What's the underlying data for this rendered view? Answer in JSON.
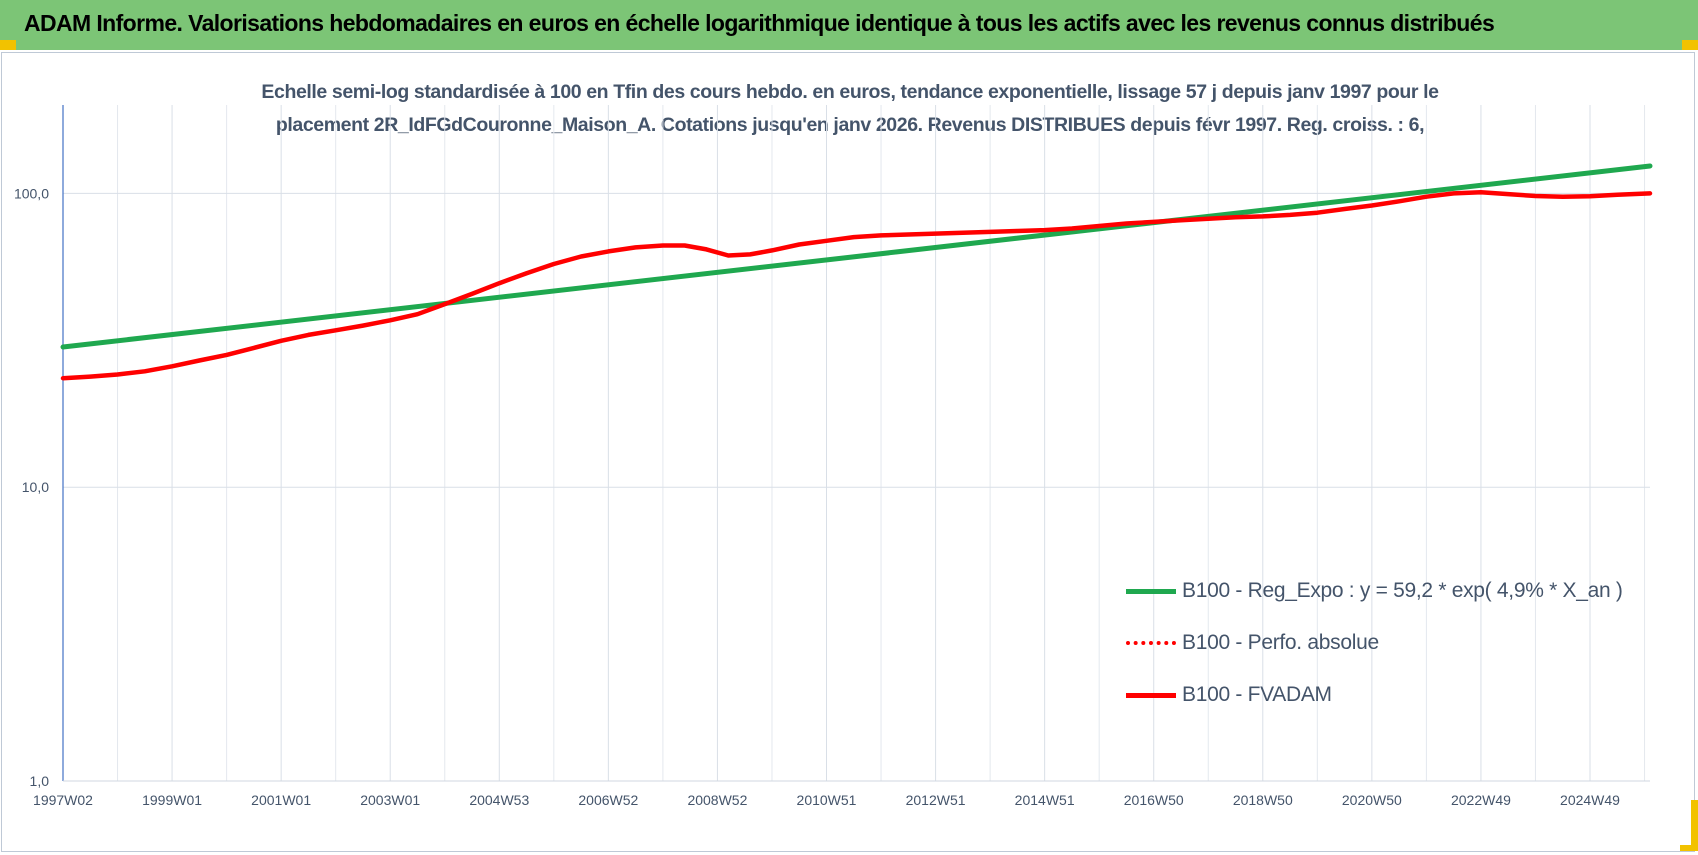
{
  "header": {
    "title": "ADAM Informe. Valorisations hebdomadaires en euros en échelle logarithmique identique à tous les actifs avec les revenus connus distribués"
  },
  "chart_data": {
    "type": "line",
    "title_lines": [
      "Echelle semi-log standardisée à 100 en Tfin des cours hebdo. en euros, tendance exponentielle, lissage 57 j depuis janv 1997 pour le",
      "placement 2R_IdFGdCouronne_Maison_A. Cotations jusqu'en janv 2026. Revenus DISTRIBUES depuis févr 1997. Reg. croiss. : 6,"
    ],
    "y_scale": "log",
    "ylim": [
      1,
      200
    ],
    "y_ticks": [
      "1,0",
      "10,0",
      "100,0"
    ],
    "y_tick_values": [
      1,
      10,
      100
    ],
    "x_range": [
      1997.0,
      2026.1
    ],
    "x_tick_labels": [
      "1997W02",
      "1999W01",
      "2001W01",
      "2003W01",
      "2004W53",
      "2006W52",
      "2008W52",
      "2010W51",
      "2012W51",
      "2014W51",
      "2016W50",
      "2018W50",
      "2020W50",
      "2022W49",
      "2024W49"
    ],
    "x_tick_years": [
      1997.0,
      1999.0,
      2001.0,
      2003.0,
      2005.0,
      2007.0,
      2009.0,
      2011.0,
      2013.0,
      2015.0,
      2017.0,
      2019.0,
      2021.0,
      2023.0,
      2025.0
    ],
    "grid": true,
    "legend_position": "bottom-right",
    "series": [
      {
        "name": "B100 - Reg_Expo : y = 59,2 * exp( 4,9% *  X_an )",
        "color": "#1fa84f",
        "style": "solid",
        "points": [
          [
            1997.0,
            30.0
          ],
          [
            2026.1,
            124.0
          ]
        ]
      },
      {
        "name": "B100 - Perfo. absolue",
        "color": "#ff0000",
        "style": "dotted",
        "points": []
      },
      {
        "name": "B100 - FVADAM",
        "color": "#ff0000",
        "style": "solid",
        "points": [
          [
            1997.0,
            23.5
          ],
          [
            1997.5,
            23.8
          ],
          [
            1998.0,
            24.2
          ],
          [
            1998.5,
            24.8
          ],
          [
            1999.0,
            25.8
          ],
          [
            1999.5,
            27.0
          ],
          [
            2000.0,
            28.2
          ],
          [
            2000.5,
            29.8
          ],
          [
            2001.0,
            31.5
          ],
          [
            2001.5,
            33.0
          ],
          [
            2002.0,
            34.2
          ],
          [
            2002.5,
            35.5
          ],
          [
            2003.0,
            37.0
          ],
          [
            2003.5,
            38.8
          ],
          [
            2004.0,
            42.0
          ],
          [
            2004.5,
            45.5
          ],
          [
            2005.0,
            49.5
          ],
          [
            2005.5,
            53.5
          ],
          [
            2006.0,
            57.5
          ],
          [
            2006.5,
            61.0
          ],
          [
            2007.0,
            63.5
          ],
          [
            2007.5,
            65.5
          ],
          [
            2008.0,
            66.5
          ],
          [
            2008.4,
            66.5
          ],
          [
            2008.8,
            64.5
          ],
          [
            2009.2,
            61.5
          ],
          [
            2009.6,
            62.0
          ],
          [
            2010.0,
            64.0
          ],
          [
            2010.5,
            67.0
          ],
          [
            2011.0,
            69.0
          ],
          [
            2011.5,
            71.0
          ],
          [
            2012.0,
            72.0
          ],
          [
            2012.5,
            72.5
          ],
          [
            2013.0,
            73.0
          ],
          [
            2013.5,
            73.5
          ],
          [
            2014.0,
            74.0
          ],
          [
            2014.5,
            74.5
          ],
          [
            2015.0,
            75.0
          ],
          [
            2015.5,
            76.0
          ],
          [
            2016.0,
            77.5
          ],
          [
            2016.5,
            79.0
          ],
          [
            2017.0,
            80.0
          ],
          [
            2017.5,
            81.0
          ],
          [
            2018.0,
            82.0
          ],
          [
            2018.5,
            83.0
          ],
          [
            2019.0,
            83.5
          ],
          [
            2019.5,
            84.5
          ],
          [
            2020.0,
            86.0
          ],
          [
            2020.5,
            88.5
          ],
          [
            2021.0,
            91.0
          ],
          [
            2021.5,
            94.0
          ],
          [
            2022.0,
            97.5
          ],
          [
            2022.5,
            100.0
          ],
          [
            2023.0,
            101.0
          ],
          [
            2023.5,
            99.5
          ],
          [
            2024.0,
            98.0
          ],
          [
            2024.5,
            97.5
          ],
          [
            2025.0,
            97.8
          ],
          [
            2025.5,
            99.0
          ],
          [
            2026.1,
            100.0
          ]
        ]
      }
    ]
  }
}
